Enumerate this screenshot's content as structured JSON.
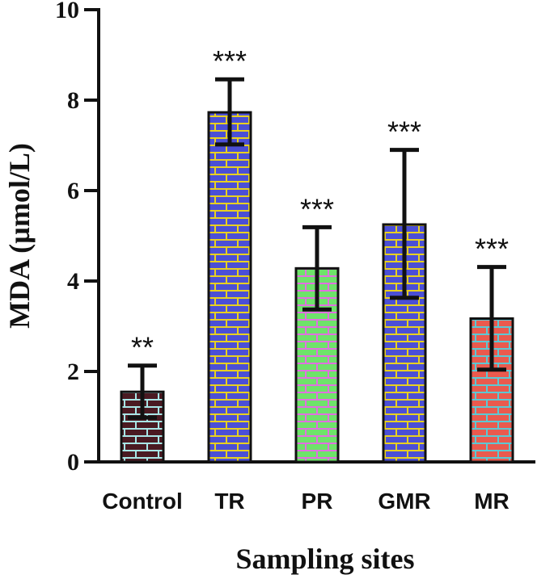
{
  "chart_data": {
    "type": "bar",
    "title": "",
    "xlabel": "Sampling sites",
    "ylabel": "MDA (µmol/L)",
    "ylim": [
      0,
      10
    ],
    "yticks": [
      "0",
      "2",
      "4",
      "6",
      "8",
      "10"
    ],
    "categories": [
      "Control",
      "TR",
      "PR",
      "GMR",
      "MR"
    ],
    "values": [
      1.55,
      7.73,
      4.28,
      5.25,
      3.17
    ],
    "error_low": [
      0.98,
      7.02,
      3.37,
      3.63,
      2.04
    ],
    "error_high": [
      2.13,
      8.46,
      5.19,
      6.9,
      4.31
    ],
    "significance": [
      "**",
      "***",
      "***",
      "***",
      "***"
    ],
    "patterns": [
      {
        "fill": "#4a1a22",
        "mortar": "#a8e6e6"
      },
      {
        "fill": "#4b4fd6",
        "mortar": "#e8d020"
      },
      {
        "fill": "#6ee36a",
        "mortar": "#e070e0"
      },
      {
        "fill": "#4b4fd6",
        "mortar": "#e8d020"
      },
      {
        "fill": "#ea5a4e",
        "mortar": "#5cc8d4"
      }
    ]
  }
}
